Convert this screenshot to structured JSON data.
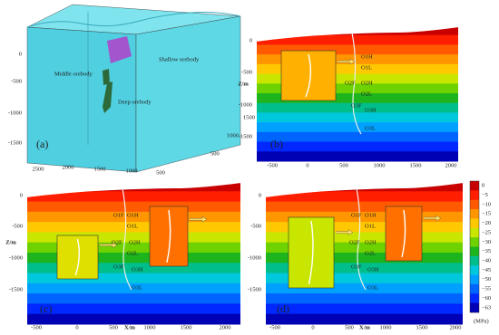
{
  "panel_a": {
    "label": "(a)",
    "annotations": [
      "Shallow orebody",
      "Middle orebody",
      "Deep orebody"
    ],
    "z_ticks": [
      "0",
      "-500",
      "-1000",
      "-1500"
    ],
    "x_ticks": [
      "2500",
      "2000",
      "1500",
      "1000",
      "500"
    ],
    "y_ticks": [
      "500",
      "1000",
      "1500"
    ]
  },
  "panel_b": {
    "label": "(b)",
    "z_label": "Z/m",
    "z_ticks": [
      "0",
      "-500",
      "-1000",
      "-1500"
    ],
    "x_ticks": [
      "-500",
      "0",
      "500",
      "1000",
      "1500",
      "2000"
    ],
    "stations": [
      "O1H",
      "O1L",
      "O2F",
      "O2H",
      "O2L",
      "O3F",
      "O3H",
      "O3L"
    ]
  },
  "panel_c": {
    "label": "(c)",
    "z_label": "Z/m",
    "x_label": "X/m",
    "z_ticks": [
      "0",
      "-500",
      "-1000",
      "-1500"
    ],
    "x_ticks": [
      "-500",
      "0",
      "500",
      "1000",
      "1500",
      "2000"
    ],
    "stations": [
      "O1F",
      "O1H",
      "O1L",
      "O2F",
      "O2H",
      "O2L",
      "O3F",
      "O3H",
      "O3L"
    ]
  },
  "panel_d": {
    "label": "(d)",
    "x_label": "X/m",
    "z_ticks": [
      "0",
      "-500",
      "-1000",
      "-1500"
    ],
    "x_ticks": [
      "-500",
      "0",
      "500",
      "1000",
      "1500",
      "2000"
    ],
    "stations": [
      "O1F",
      "O1H",
      "O1L",
      "O2F",
      "O2H",
      "O2L",
      "O3F",
      "O3H",
      "O3L"
    ]
  },
  "colorbar": {
    "labels": [
      "0",
      "−5",
      "−10",
      "−15",
      "−20",
      "−25",
      "−30",
      "−35",
      "−40",
      "−45",
      "−50",
      "−55",
      "−60",
      "−63"
    ],
    "unit": "(MPa)"
  }
}
